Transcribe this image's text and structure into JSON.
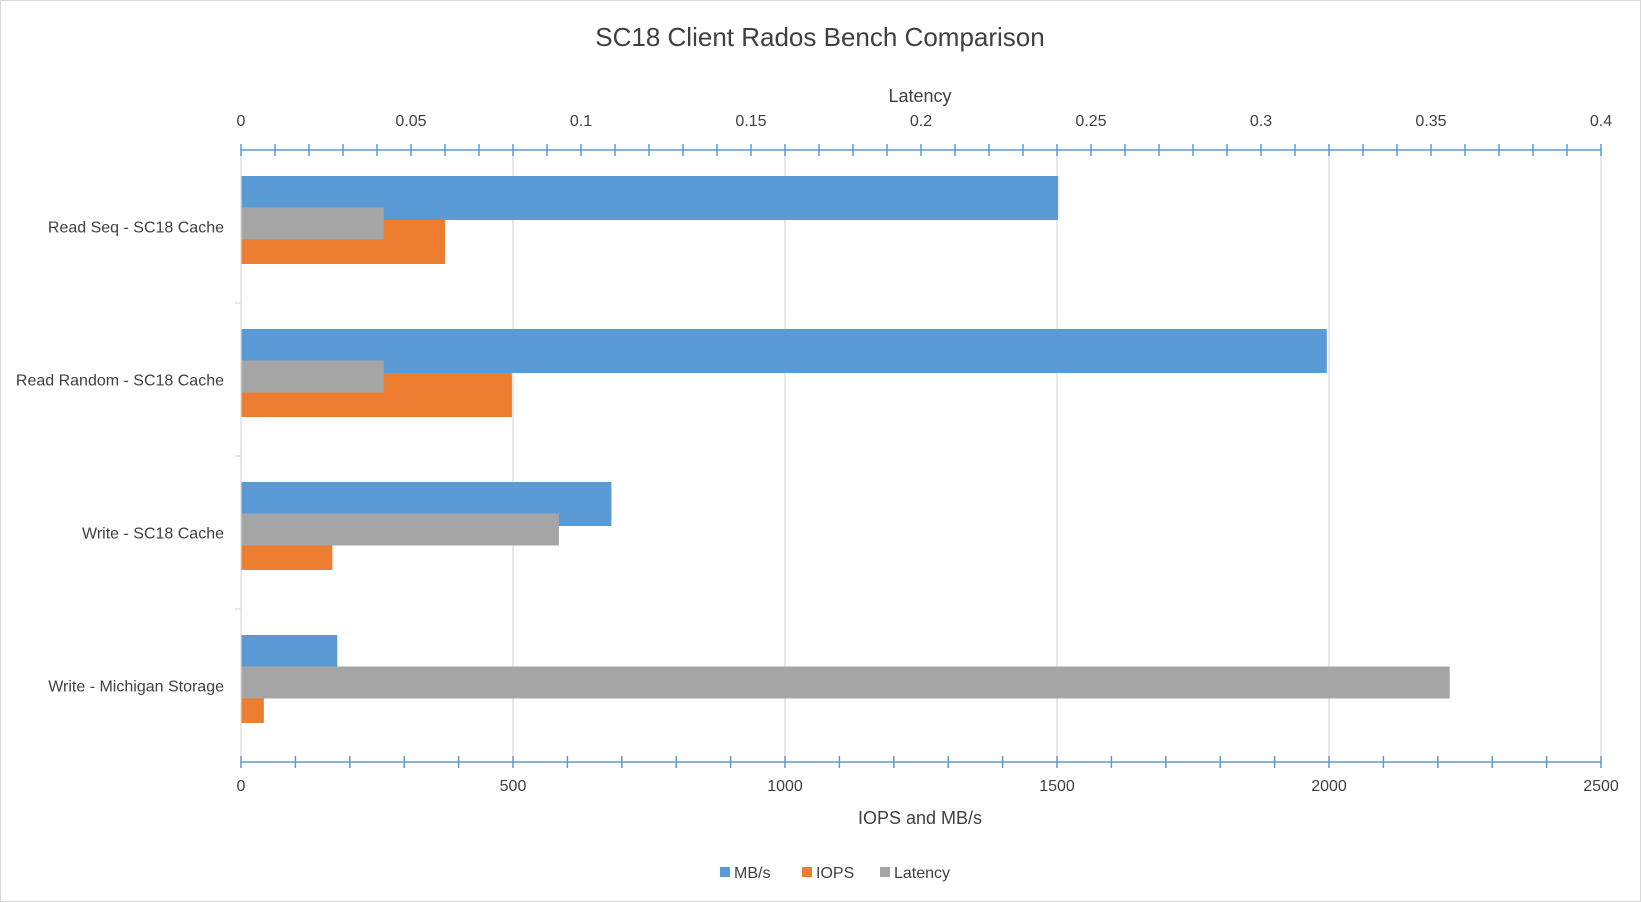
{
  "chart_data": {
    "type": "bar",
    "orientation": "horizontal",
    "title": "SC18 Client Rados Bench Comparison",
    "categories": [
      "Read Seq - SC18 Cache",
      "Read Random - SC18 Cache",
      "Write - SC18 Cache",
      "Write - Michigan Storage"
    ],
    "series": [
      {
        "name": "MB/s",
        "color": "#5B9BD5",
        "axis": "primary",
        "values": [
          1502,
          1996,
          681,
          177
        ]
      },
      {
        "name": "IOPS",
        "color": "#ED7D31",
        "axis": "primary",
        "values": [
          375,
          498,
          168,
          42
        ]
      },
      {
        "name": "Latency",
        "color": "#A5A5A5",
        "axis": "secondary",
        "values": [
          0.042,
          0.042,
          0.0935,
          0.3555
        ]
      }
    ],
    "xlabel": "IOPS and MB/s",
    "x_ticks": [
      "0",
      "500",
      "1000",
      "1500",
      "2000",
      "2500"
    ],
    "xlim": [
      0,
      2500
    ],
    "x2label": "Latency",
    "x2_ticks": [
      "0",
      "0.05",
      "0.1",
      "0.15",
      "0.2",
      "0.25",
      "0.3",
      "0.35",
      "0.4"
    ],
    "x2lim": [
      0,
      0.4
    ],
    "grid": true,
    "legend_position": "bottom"
  }
}
